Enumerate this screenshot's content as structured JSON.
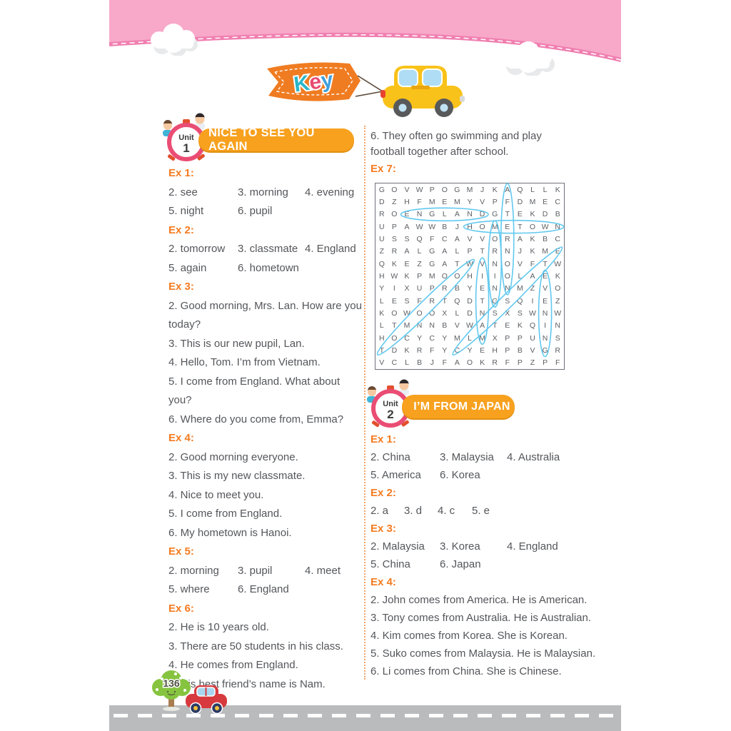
{
  "banner": {
    "label": "Key"
  },
  "unit1": {
    "badge": {
      "label": "Unit",
      "number": "1"
    },
    "title": "NICE TO SEE YOU AGAIN",
    "exercises": [
      {
        "label": "Ex 1:",
        "layout": "cols3",
        "items": [
          "2. see",
          "3. morning",
          "4. evening",
          "5. night",
          "6. pupil"
        ]
      },
      {
        "label": "Ex 2:",
        "layout": "cols3",
        "items": [
          "2. tomorrow",
          "3. classmate",
          "4. England",
          "5. again",
          "6. hometown"
        ]
      },
      {
        "label": "Ex 3:",
        "layout": "lines",
        "items": [
          "2. Good morning, Mrs. Lan. How are you today?",
          "3. This is our new pupil, Lan.",
          "4. Hello, Tom. I’m from Vietnam.",
          "5. I come from England. What about you?",
          "6. Where do you come from, Emma?"
        ]
      },
      {
        "label": "Ex 4:",
        "layout": "lines",
        "items": [
          "2. Good morning everyone.",
          "3. This is my new classmate.",
          "4. Nice to meet you.",
          "5. I come from England.",
          "6. My hometown is Hanoi."
        ]
      },
      {
        "label": "Ex 5:",
        "layout": "cols3",
        "items": [
          "2. morning",
          "3. pupil",
          "4. meet",
          "5. where",
          "6. England"
        ]
      },
      {
        "label": "Ex 6:",
        "layout": "lines",
        "items": [
          "2. He is 10 years old.",
          "3. There are 50 students in his class.",
          "4. He comes from England.",
          "5. His best friend’s name is Nam."
        ]
      }
    ],
    "ex6_continuation": "6. They often go swimming and play football together after school.",
    "ex7_label": "Ex 7:"
  },
  "wordsearch": {
    "grid": [
      "GOVWPOGMJKAQLLK",
      "DZHFMEMYVPFDMEC",
      "ROENGLANDGTEKDB",
      "UPAWWBJHOMETOWN",
      "USSQFCAVVORAKBC",
      "ZRALGALPTRNJKME",
      "QKEZGATWVNOVFTW",
      "HWKPMOOHIIOLAEK",
      "YIXUPRBYENNMZVO",
      "LESFRTQDTGSQIEZ",
      "KOWOOXLDNSXSWNW",
      "LTMNNBVWATEKQIN",
      "HOCYCYMLMXPPUNS",
      "TDKRFYCYEHPBVGR",
      "VCLBJFAOKRFPZPF"
    ],
    "found_words": [
      {
        "word": "ENGLAND",
        "from": [
          3,
          3
        ],
        "to": [
          3,
          9
        ]
      },
      {
        "word": "HOMETOWN",
        "from": [
          4,
          8
        ],
        "to": [
          4,
          15
        ]
      },
      {
        "word": "AFTERNOON",
        "from": [
          1,
          11
        ],
        "to": [
          9,
          11
        ]
      },
      {
        "word": "MORNING",
        "from": [
          4,
          10
        ],
        "to": [
          10,
          10
        ]
      },
      {
        "word": "VIETNAM",
        "from": [
          7,
          9
        ],
        "to": [
          13,
          9
        ]
      },
      {
        "word": "EVENING",
        "from": [
          8,
          14
        ],
        "to": [
          14,
          14
        ]
      },
      {
        "word": "TOMORROW",
        "from": [
          14,
          1
        ],
        "to": [
          7,
          8
        ]
      },
      {
        "word": "CLASSMATE",
        "from": [
          14,
          7
        ],
        "to": [
          6,
          15
        ]
      }
    ],
    "highlight_color": "#62c9ef"
  },
  "unit2": {
    "badge": {
      "label": "Unit",
      "number": "2"
    },
    "title": "I’M FROM JAPAN",
    "exercises": [
      {
        "label": "Ex 1:",
        "layout": "cols3",
        "items": [
          "2. China",
          "3. Malaysia",
          "4. Australia",
          "5. America",
          "6. Korea"
        ]
      },
      {
        "label": "Ex 2:",
        "layout": "cols4",
        "items": [
          "2. a",
          "3. d",
          "4. c",
          "5. e"
        ]
      },
      {
        "label": "Ex 3:",
        "layout": "cols3",
        "items": [
          "2. Malaysia",
          "3. Korea",
          "4. England",
          "5. China",
          "6. Japan"
        ]
      },
      {
        "label": "Ex 4:",
        "layout": "lines",
        "items": [
          "2. John comes from America. He is American.",
          "3. Tony comes from Australia. He is Australian.",
          "4. Kim comes from Korea. She is Korean.",
          "5. Suko comes from Malaysia. He is Malaysian.",
          "6. Li comes from China. She is Chinese."
        ]
      }
    ]
  },
  "footer": {
    "page_number": "136"
  },
  "colors": {
    "accent_orange": "#f7a11f",
    "ex_label_orange": "#f47b20",
    "text_gray": "#54565a",
    "pink_band": "#f8a8c9",
    "pink_edge": "#f07fb0",
    "highlight_blue": "#62c9ef",
    "road_gray": "#b9bbbd"
  }
}
